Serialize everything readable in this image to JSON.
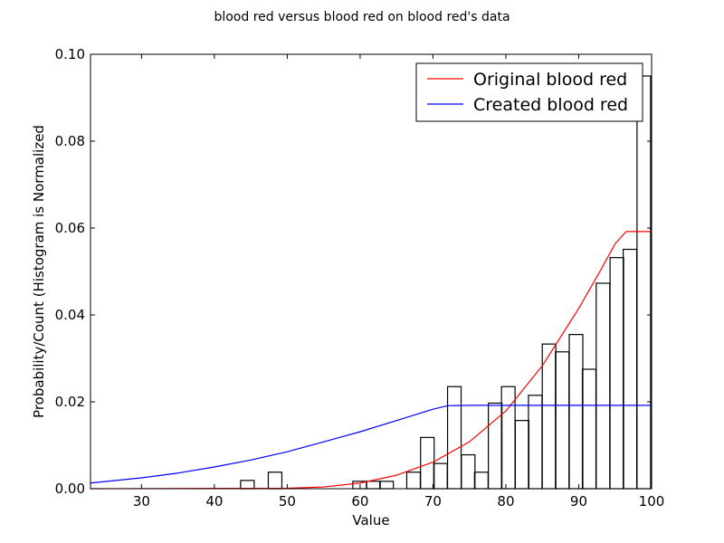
{
  "chart_data": {
    "type": "bar",
    "title": "blood red versus blood red on blood red's data",
    "xlabel": "Value",
    "ylabel": "Probability/Count (Histogram is Normalized",
    "xlim": [
      23,
      100
    ],
    "ylim": [
      0,
      0.1
    ],
    "x_ticks": [
      "30",
      "40",
      "50",
      "60",
      "70",
      "80",
      "90",
      "100"
    ],
    "y_ticks": [
      "0.00",
      "0.02",
      "0.04",
      "0.06",
      "0.08",
      "0.10"
    ],
    "grid": false,
    "legend_position": "top-right",
    "histogram": {
      "bin_width": 1.86,
      "bins": [
        {
          "start": 43.6,
          "value": 0.0019
        },
        {
          "start": 47.4,
          "value": 0.0038
        },
        {
          "start": 59.0,
          "value": 0.0017
        },
        {
          "start": 60.9,
          "value": 0.0017
        },
        {
          "start": 62.7,
          "value": 0.0017
        },
        {
          "start": 66.4,
          "value": 0.0038
        },
        {
          "start": 68.3,
          "value": 0.0118
        },
        {
          "start": 70.1,
          "value": 0.0058
        },
        {
          "start": 72.0,
          "value": 0.0235
        },
        {
          "start": 73.9,
          "value": 0.0078
        },
        {
          "start": 75.7,
          "value": 0.0038
        },
        {
          "start": 77.6,
          "value": 0.0197
        },
        {
          "start": 79.4,
          "value": 0.0235
        },
        {
          "start": 81.3,
          "value": 0.0157
        },
        {
          "start": 83.1,
          "value": 0.0215
        },
        {
          "start": 85.0,
          "value": 0.0333
        },
        {
          "start": 86.8,
          "value": 0.0315
        },
        {
          "start": 88.7,
          "value": 0.0355
        },
        {
          "start": 90.5,
          "value": 0.0275
        },
        {
          "start": 92.4,
          "value": 0.0473
        },
        {
          "start": 94.3,
          "value": 0.0532
        },
        {
          "start": 96.1,
          "value": 0.0551
        },
        {
          "start": 98.0,
          "value": 0.095
        }
      ]
    },
    "series": [
      {
        "name": "Original blood red",
        "color": "#ff0000",
        "x": [
          23,
          50,
          55,
          60,
          65,
          70,
          75,
          80,
          85,
          90,
          93,
          95,
          96.5,
          100
        ],
        "y": [
          0.0,
          0.0001,
          0.0004,
          0.0013,
          0.0031,
          0.0061,
          0.0108,
          0.0179,
          0.0283,
          0.0415,
          0.0503,
          0.0564,
          0.0592,
          0.0592
        ]
      },
      {
        "name": "Created blood red",
        "color": "#0000ff",
        "x": [
          23,
          30,
          35,
          40,
          45,
          50,
          55,
          60,
          65,
          70,
          72,
          75,
          80,
          100
        ],
        "y": [
          0.0013,
          0.0025,
          0.0036,
          0.005,
          0.0066,
          0.0085,
          0.0108,
          0.0131,
          0.0157,
          0.0183,
          0.0191,
          0.0192,
          0.0192,
          0.0192
        ]
      }
    ]
  }
}
